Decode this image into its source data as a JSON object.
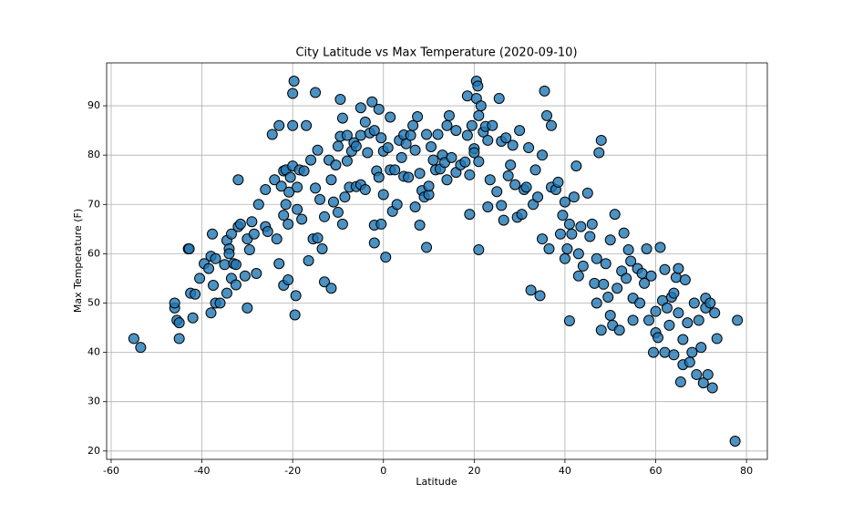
{
  "chart_data": {
    "type": "scatter",
    "title": "City Latitude vs Max Temperature (2020-09-10)",
    "x_label": "Latitude",
    "y_label": "Max Temperature (F)",
    "color": "#1f77b4",
    "edge_color": "#000000",
    "grid": true,
    "xlim": [
      -61.0,
      84.6
    ],
    "ylim": [
      18.3,
      98.7
    ],
    "xticks": [
      -60,
      -40,
      -20,
      0,
      20,
      40,
      60,
      80
    ],
    "yticks": [
      20,
      30,
      40,
      50,
      60,
      70,
      80,
      90
    ],
    "x": [
      -55,
      -53.5,
      -46,
      -46,
      -45.5,
      -45,
      -45,
      -43,
      -42.8,
      -42.5,
      -42,
      -41.5,
      -40.5,
      -39.5,
      -38.5,
      -38,
      -38,
      -37.7,
      -37.5,
      -37,
      -37,
      -36,
      -35,
      -34.5,
      -34.5,
      -34,
      -34,
      -33.5,
      -33.5,
      -33,
      -32.5,
      -32.5,
      -32,
      -32,
      -31.5,
      -30.5,
      -30,
      -30,
      -29.5,
      -29,
      -28.5,
      -28,
      -27.5,
      -26,
      -26,
      -25.5,
      -24.5,
      -24,
      -23.5,
      -23,
      -23,
      -22.5,
      -22,
      -22,
      -22,
      -21.5,
      -21.5,
      -21,
      -21,
      -20.8,
      -20.5,
      -20,
      -20,
      -20,
      -19.7,
      -19.5,
      -19.3,
      -19,
      -19,
      -18.5,
      -18,
      -17.5,
      -17,
      -16.5,
      -16,
      -15.5,
      -15,
      -15,
      -14.5,
      -14.5,
      -14,
      -13.5,
      -13,
      -13,
      -12,
      -11.5,
      -11.5,
      -11,
      -10.5,
      -10,
      -10,
      -9.5,
      -9.5,
      -9,
      -9,
      -8.5,
      -8,
      -8,
      -7.5,
      -7,
      -6.5,
      -6,
      -6,
      -5,
      -5,
      -5,
      -4,
      -4,
      -3.5,
      -3,
      -2.5,
      -2,
      -2,
      -2,
      -1.5,
      -1,
      -1,
      -0.5,
      -0.5,
      0,
      0,
      0.5,
      1,
      1.5,
      1.5,
      2,
      2.5,
      3,
      3.5,
      4,
      4.5,
      4.5,
      5,
      5.5,
      6,
      6.5,
      7,
      7,
      7.5,
      8,
      8,
      8.5,
      9,
      9.5,
      9.5,
      10,
      10,
      10.5,
      11,
      11.5,
      12,
      12.5,
      13,
      13.5,
      14,
      14,
      14.5,
      15,
      16,
      16,
      17,
      18,
      18.5,
      18.5,
      19,
      19,
      19.5,
      20,
      20,
      20.5,
      20.5,
      20.8,
      21,
      21,
      21,
      21.5,
      22,
      22.5,
      23,
      23,
      23.5,
      24,
      25,
      25.5,
      26,
      26,
      26.5,
      27,
      27.5,
      28,
      28.5,
      29,
      29.5,
      30,
      30.5,
      31,
      31.5,
      32,
      32.5,
      33,
      33.5,
      34,
      34.5,
      35,
      35,
      35.5,
      36,
      36.5,
      37,
      37,
      38,
      38.5,
      39,
      39.5,
      40,
      40,
      40.5,
      41,
      41,
      41.5,
      42,
      42.5,
      43,
      43,
      43.5,
      44,
      45,
      45.5,
      46,
      46.5,
      47,
      47,
      47.5,
      48,
      48,
      48.5,
      49,
      49.5,
      50,
      50,
      50.5,
      51,
      51.5,
      52,
      52.5,
      53,
      53.5,
      54,
      54.5,
      55,
      55,
      56,
      56.5,
      57,
      57.5,
      58,
      58.5,
      59,
      59.5,
      60,
      60,
      60.5,
      61,
      61.5,
      62,
      62,
      62.5,
      63,
      63.5,
      64,
      64,
      64.5,
      65,
      65,
      65.5,
      66,
      66,
      66.5,
      67,
      67.5,
      68,
      68.5,
      69,
      69.5,
      70,
      70.5,
      71,
      71,
      71.5,
      72,
      72.5,
      73,
      73.5,
      77.5,
      78
    ],
    "values": [
      42.8,
      41,
      49,
      50,
      46.5,
      46,
      42.8,
      61,
      61,
      52,
      47,
      51.8,
      55,
      58,
      57,
      59.5,
      48,
      64,
      53.6,
      59,
      50,
      50,
      57.8,
      52,
      62.7,
      61,
      60,
      64,
      55,
      58,
      53.7,
      57.8,
      65.5,
      75,
      66,
      55.5,
      63,
      49,
      60.8,
      66.5,
      64,
      56,
      70,
      73,
      65.5,
      64.5,
      84.2,
      75,
      63,
      86,
      58,
      73.7,
      53.6,
      67.8,
      76.8,
      77,
      70,
      66,
      54.7,
      72.5,
      75.5,
      77.8,
      86,
      92.5,
      95,
      47.6,
      51.5,
      73.5,
      69,
      77,
      67,
      76.8,
      86,
      58.6,
      79,
      63,
      92.7,
      73.3,
      81,
      63.2,
      71,
      61,
      67.5,
      54.3,
      79,
      53,
      75,
      70.5,
      78,
      81.8,
      68.4,
      83.8,
      91.3,
      87.5,
      66,
      71.5,
      84,
      78.8,
      73.5,
      80.8,
      82.5,
      81.8,
      73.6,
      89.6,
      84,
      74,
      86.7,
      73,
      80.5,
      84.5,
      90.8,
      85,
      65.8,
      62.2,
      76.8,
      89.3,
      75.5,
      83.5,
      66,
      80.8,
      72,
      59.3,
      81.5,
      87.7,
      77,
      68.6,
      77,
      70,
      83,
      79.5,
      75.7,
      84.1,
      82.3,
      75.5,
      84,
      86,
      81,
      69.5,
      87.8,
      76.3,
      65.8,
      72.8,
      71.5,
      84.2,
      61.3,
      72,
      73.7,
      81.7,
      79,
      77,
      84.2,
      77.2,
      80,
      78.5,
      86,
      75,
      88,
      79.5,
      85,
      76.5,
      78,
      78.6,
      92,
      84,
      68,
      76,
      86,
      81.3,
      80.5,
      91.5,
      95,
      94,
      88,
      60.8,
      78.7,
      90,
      84.7,
      85.8,
      83,
      69.5,
      75,
      86,
      72.6,
      91.5,
      69.8,
      82.8,
      66.8,
      83.5,
      75.8,
      78,
      82,
      74,
      67.4,
      85,
      68,
      73,
      73.5,
      81.5,
      52.6,
      70,
      77,
      71.5,
      51.5,
      63,
      80,
      93,
      88,
      61,
      86,
      73.5,
      73,
      74.5,
      64,
      67.8,
      70.5,
      59,
      61,
      66,
      46.4,
      64,
      71.5,
      77.8,
      55.5,
      60,
      65.5,
      57.5,
      72.3,
      63.5,
      66,
      54,
      59,
      50,
      80.5,
      83,
      44.5,
      53.8,
      58,
      51.2,
      47.5,
      62.8,
      45.5,
      68,
      53,
      44.5,
      56.5,
      64.2,
      55,
      60.8,
      58.5,
      51,
      46.5,
      57,
      50,
      56,
      54,
      61,
      46.5,
      55.5,
      40,
      48.3,
      44,
      43,
      61.3,
      50.5,
      40,
      56.8,
      49,
      45.5,
      51.2,
      39.5,
      52,
      55.2,
      57,
      48,
      34,
      42.6,
      37.5,
      54.7,
      46,
      38,
      40,
      50,
      35.5,
      46.5,
      41,
      33.8,
      51,
      49,
      35.5,
      50,
      32.8,
      48,
      42.8,
      22,
      46.5
    ]
  }
}
